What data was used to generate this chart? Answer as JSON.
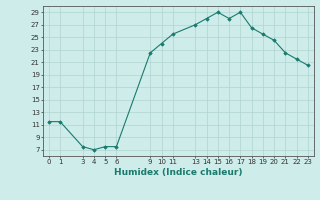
{
  "x": [
    0,
    1,
    3,
    4,
    5,
    6,
    9,
    10,
    11,
    13,
    14,
    15,
    16,
    17,
    18,
    19,
    20,
    21,
    22,
    23
  ],
  "y": [
    11.5,
    11.5,
    7.5,
    7.0,
    7.5,
    7.5,
    22.5,
    24.0,
    25.5,
    27.0,
    28.0,
    29.0,
    28.0,
    29.0,
    26.5,
    25.5,
    24.5,
    22.5,
    21.5,
    20.5
  ],
  "xticks": [
    0,
    1,
    3,
    4,
    5,
    6,
    9,
    10,
    11,
    13,
    14,
    15,
    16,
    17,
    18,
    19,
    20,
    21,
    22,
    23
  ],
  "yticks": [
    7,
    9,
    11,
    13,
    15,
    17,
    19,
    21,
    23,
    25,
    27,
    29
  ],
  "xlabel": "Humidex (Indice chaleur)",
  "line_color": "#1a7a6e",
  "marker_color": "#1a7a6e",
  "bg_color": "#ceecea",
  "grid_color": "#b0d4d0",
  "xlim": [
    -0.5,
    23.5
  ],
  "ylim": [
    6,
    30
  ]
}
